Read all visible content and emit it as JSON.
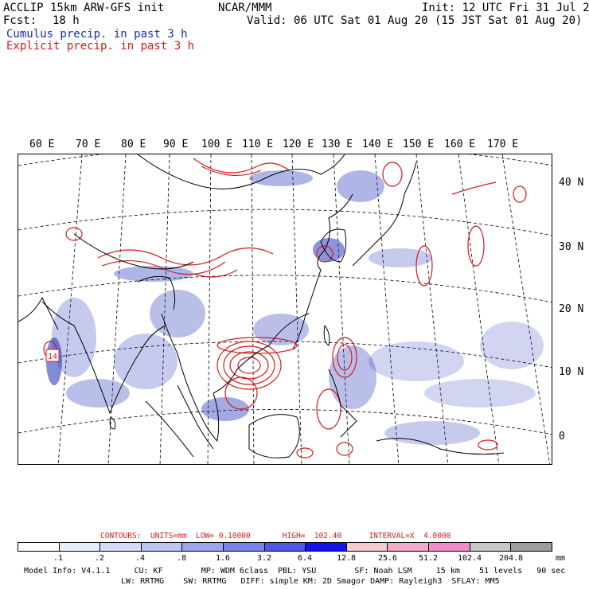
{
  "header": {
    "title": "ACCLIP 15km ARW-GFS init",
    "center": "NCAR/MMM",
    "init": "Init: 12 UTC Fri 31 Jul 20",
    "fcst_label": "Fcst:",
    "fcst_value": "18 h",
    "valid": "Valid: 06 UTC Sat 01 Aug 20 (15 JST Sat 01 Aug 20)",
    "legend_cumulus": "Cumulus precip. in past 3 h",
    "legend_explicit": "Explicit precip. in past 3 h"
  },
  "map": {
    "longitude_labels": [
      "60 E",
      "70 E",
      "80 E",
      "90 E",
      "100 E",
      "110 E",
      "120 E",
      "130 E",
      "140 E",
      "150 E",
      "160 E",
      "170 E"
    ],
    "latitude_labels": [
      "40 N",
      "30 N",
      "20 N",
      "10 N",
      "0"
    ],
    "station_label": "14",
    "colors": {
      "cumulus": "#1a2bb8",
      "explicit": "#d21c1c",
      "coast": "#000000",
      "grid": "#000000"
    }
  },
  "contours": {
    "text": "CONTOURS:  UNITS=mm  LOW= 0.10000       HIGH=  102.40      INTERVAL=X  4.0000"
  },
  "colorbar": {
    "colors": [
      "#ffffff",
      "#e8ecfa",
      "#d4dbf7",
      "#bdc6f3",
      "#9aa5ee",
      "#7a83ea",
      "#5056e6",
      "#1313f2",
      "#f5cccc",
      "#f5a8c8",
      "#f08cc8",
      "#c8c8c8",
      "#9e9e9e",
      "#303030",
      "#c8a0f0"
    ],
    "ticks": [
      ".1",
      ".2",
      ".4",
      ".8",
      "1.6",
      "3.2",
      "6.4",
      "12.8",
      "25.6",
      "51.2",
      "102.4",
      "204.8"
    ],
    "units": "mm"
  },
  "model_info": {
    "line1": "Model Info: V4.1.1     CU: KF        MP: WDM 6class  PBL: YSU        SF: Noah LSM     15 km    51 levels   90 sec",
    "line2": "LW: RRTMG    SW: RRTMG   DIFF: simple KM: 2D Smagor DAMP: Rayleigh3  SFLAY: MM5"
  }
}
